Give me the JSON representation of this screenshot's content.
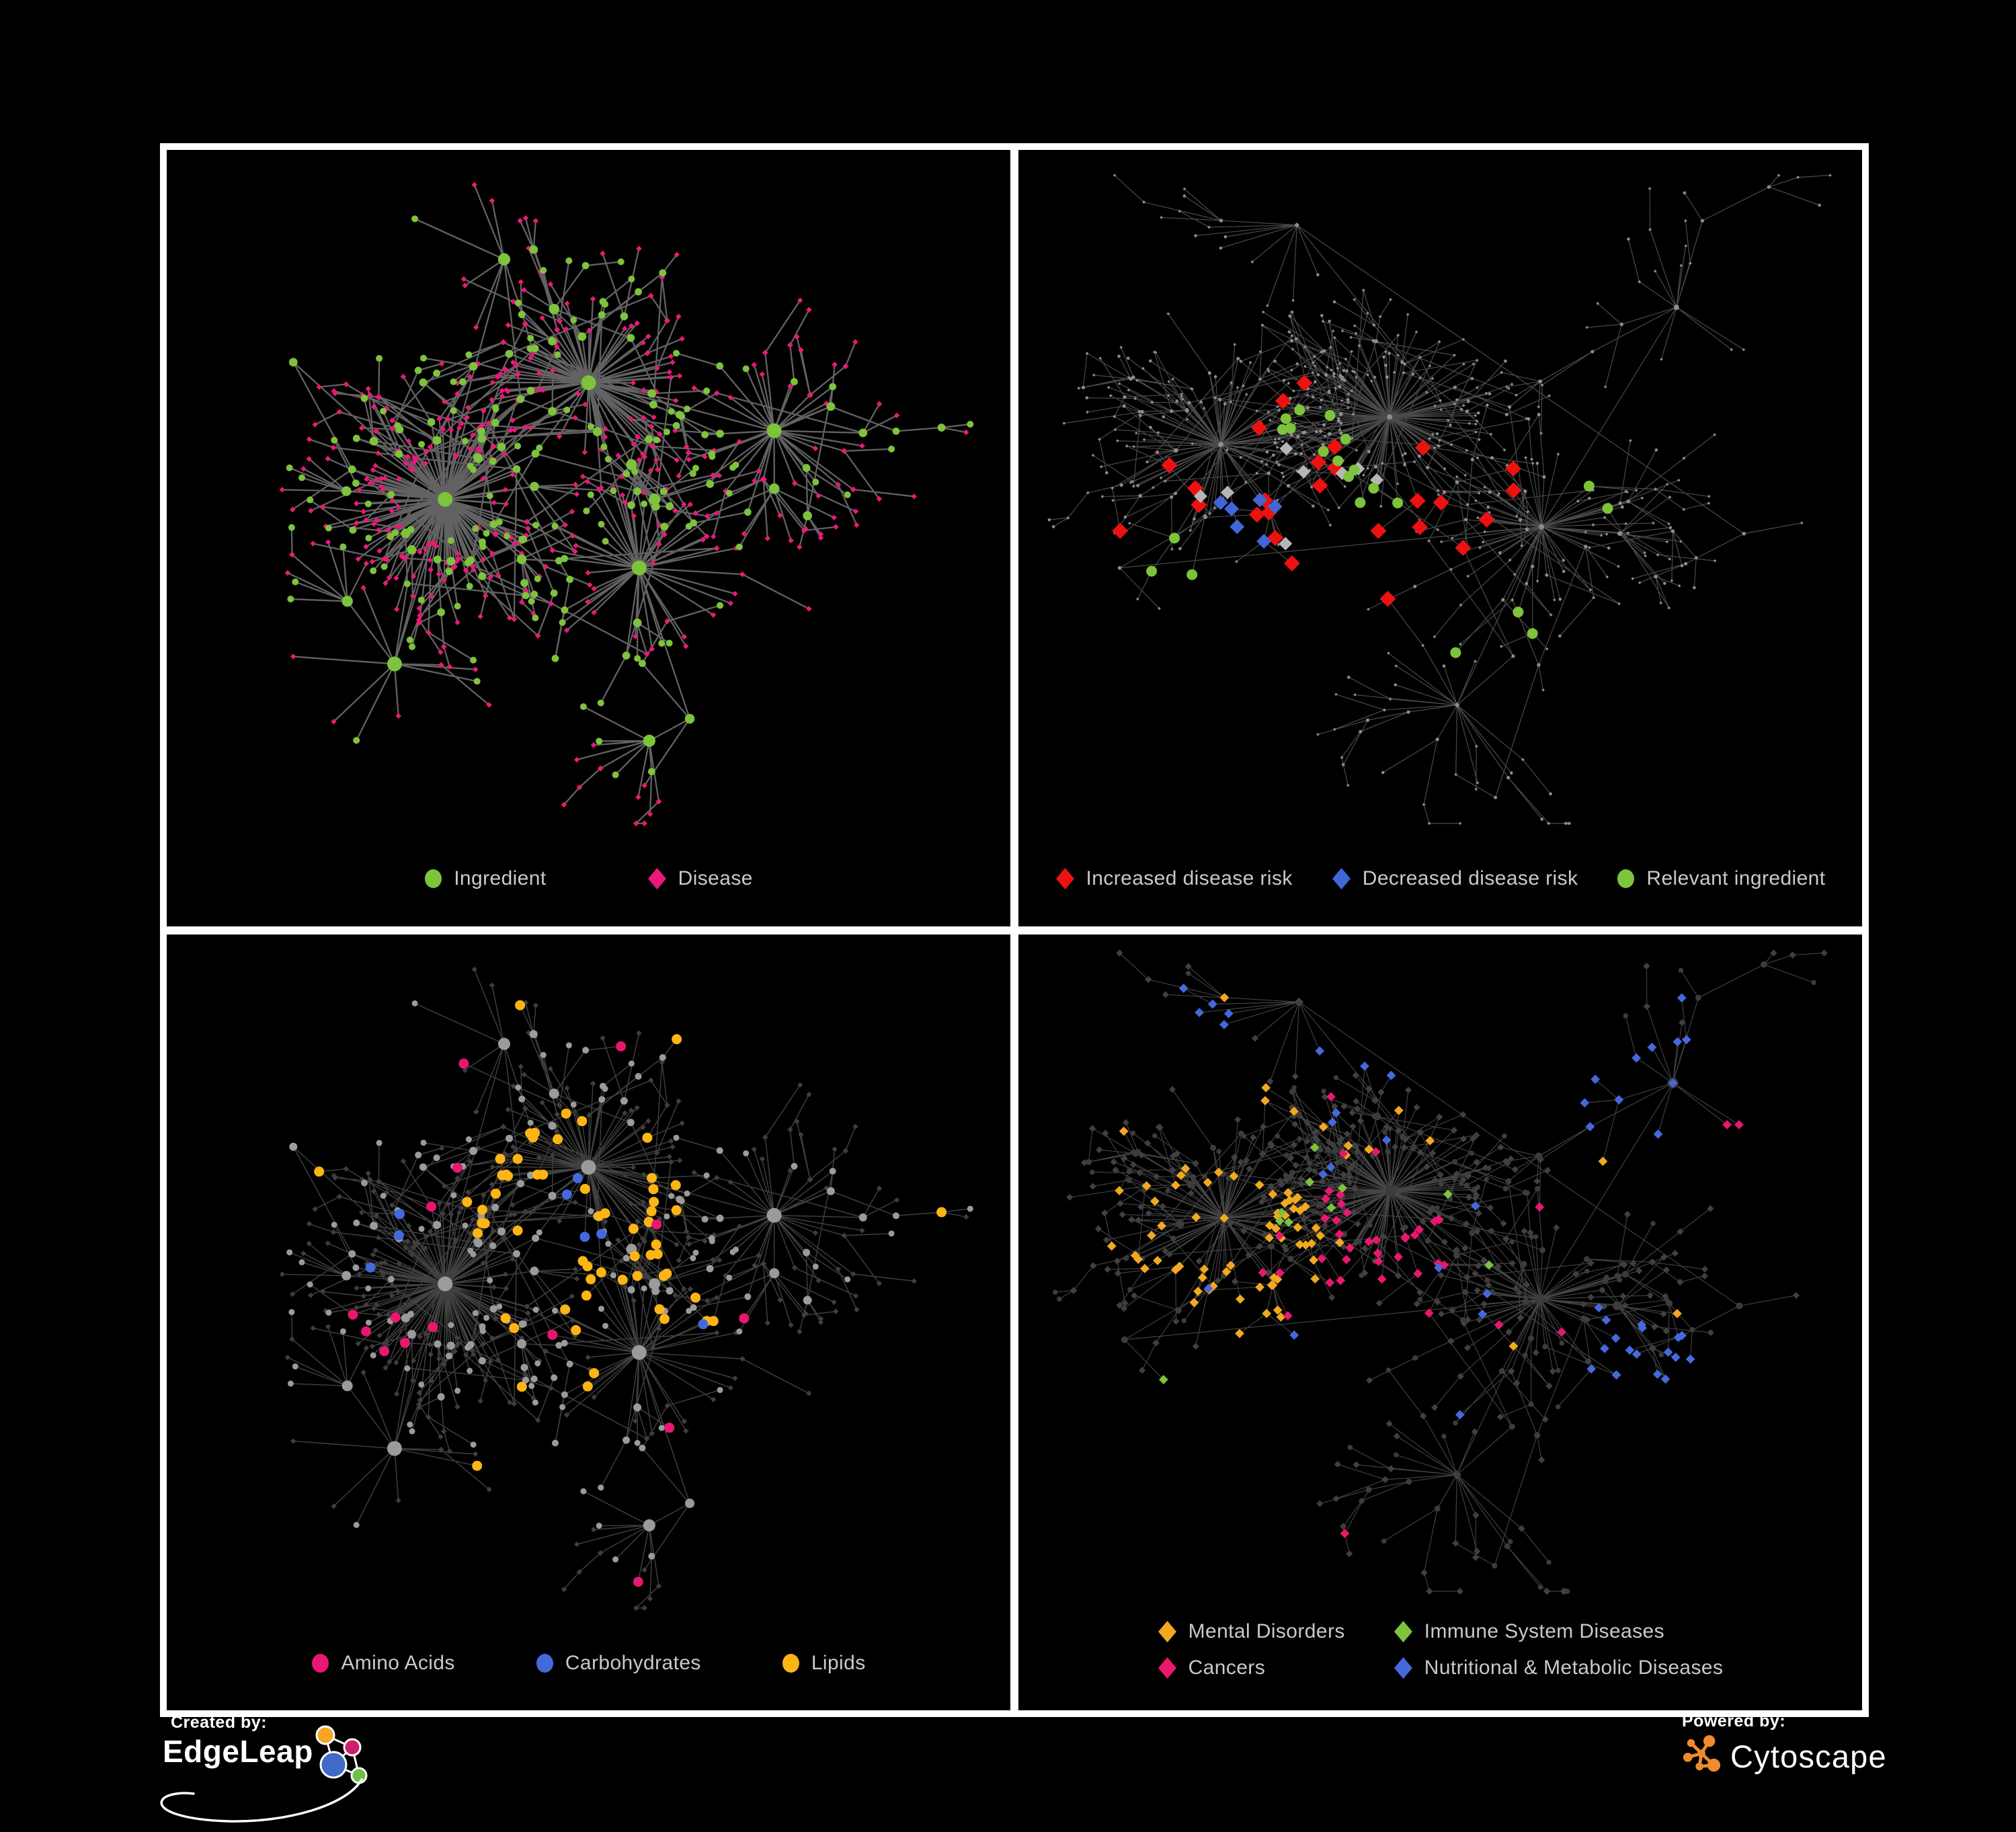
{
  "branding": {
    "created_by": "Created by:",
    "edgeleap": "EdgeLeap",
    "powered_by": "Powered by:",
    "cytoscape": "Cytoscape"
  },
  "colors": {
    "background": "#000000",
    "frame": "#ffffff",
    "legend_text": "#c9c9c9",
    "green_ingredient": "#7dc33c",
    "pink_disease": "#ec1879",
    "red_increased": "#ee1111",
    "blue_decreased": "#4166d8",
    "silver_neutral": "#b6b6b6",
    "amino_pink": "#e8176f",
    "carb_blue": "#4569dd",
    "lipid_yellow": "#fdb515",
    "mental_orange": "#f2a81f",
    "immune_green": "#7dc33c",
    "cytoscape_orange": "#ee8b2c"
  },
  "layouts": {
    "L1": {
      "seed": 21,
      "n": 630,
      "cross": 0.1,
      "clusters": [
        [
          0.33,
          0.5,
          3.5
        ],
        [
          0.5,
          0.33,
          2.2
        ],
        [
          0.56,
          0.6,
          1.6
        ],
        [
          0.27,
          0.74,
          1.2
        ],
        [
          0.72,
          0.4,
          1.0
        ],
        [
          0.4,
          0.15,
          0.8
        ],
        [
          0.62,
          0.82,
          0.8
        ],
        [
          0.15,
          0.3,
          0.7
        ]
      ]
    },
    "L2": {
      "seed": 77,
      "n": 650,
      "cross": 0.11,
      "clusters": [
        [
          0.44,
          0.38,
          3.2
        ],
        [
          0.24,
          0.42,
          1.8
        ],
        [
          0.62,
          0.54,
          1.6
        ],
        [
          0.78,
          0.22,
          1.0
        ],
        [
          0.33,
          0.1,
          0.9
        ],
        [
          0.52,
          0.8,
          0.9
        ],
        [
          0.86,
          0.55,
          0.8
        ],
        [
          0.12,
          0.6,
          0.6
        ]
      ]
    }
  },
  "panels": [
    {
      "id": "ingredient-disease",
      "legend": {
        "layout": "row-lg",
        "items": [
          {
            "label": "Ingredient",
            "shape": "circle",
            "color": "#7dc33c"
          },
          {
            "label": "Disease",
            "shape": "diamond",
            "color": "#ec1879"
          }
        ]
      },
      "network": {
        "layout": "L1",
        "hseed": 5,
        "edge": {
          "color": "#6f6f6f",
          "width": 2.3,
          "opacity": 0.88
        },
        "circle": {
          "color": "#7dc33c",
          "rmin": 4.5,
          "rmax": 11
        },
        "diamond": {
          "color": "#ec1879",
          "rmin": 4,
          "rmax": 7
        },
        "highlights": []
      }
    },
    {
      "id": "disease-risk",
      "legend": {
        "layout": "row-sm",
        "items": [
          {
            "label": "Increased disease risk",
            "shape": "diamond",
            "color": "#ee1111"
          },
          {
            "label": "Decreased disease risk",
            "shape": "diamond",
            "color": "#4166d8"
          },
          {
            "label": "Relevant ingredient",
            "shape": "circle",
            "color": "#7dc33c"
          }
        ]
      },
      "network": {
        "layout": "L2",
        "hseed": 11,
        "edge": {
          "color": "#6a6a6a",
          "width": 1.2,
          "opacity": 0.7
        },
        "circle": {
          "color": "#8d8d8d",
          "rmin": 2.2,
          "rmax": 4
        },
        "diamond": {
          "color": "#8d8d8d",
          "rmin": 2.2,
          "rmax": 4
        },
        "highlights": [
          {
            "shape": "diamond",
            "color": "#ee1111",
            "size": 12,
            "picks": [
              [
                0.42,
                0.55,
                0.14,
                16
              ],
              [
                0.25,
                0.45,
                0.08,
                5
              ],
              [
                0.14,
                0.56,
                0.04,
                1
              ],
              [
                0.62,
                0.44,
                0.06,
                2
              ],
              [
                0.78,
                0.8,
                0.08,
                3
              ],
              [
                0.31,
                0.35,
                0.05,
                2
              ]
            ]
          },
          {
            "shape": "diamond",
            "color": "#b6b6b6",
            "size": 10,
            "picks": [
              [
                0.33,
                0.58,
                0.18,
                7
              ],
              [
                0.21,
                0.47,
                0.04,
                1
              ]
            ]
          },
          {
            "shape": "diamond",
            "color": "#4166d8",
            "size": 11,
            "picks": [
              [
                0.26,
                0.55,
                0.07,
                6
              ],
              [
                0.88,
                0.38,
                0.04,
                2
              ]
            ]
          },
          {
            "shape": "circle",
            "color": "#7dc33c",
            "size": 8,
            "picks": [
              [
                0.33,
                0.52,
                0.16,
                12
              ],
              [
                0.55,
                0.7,
                0.06,
                3
              ],
              [
                0.12,
                0.63,
                0.06,
                1
              ],
              [
                0.29,
                0.37,
                0.06,
                3
              ],
              [
                0.66,
                0.52,
                0.05,
                2
              ]
            ]
          }
        ]
      }
    },
    {
      "id": "nutrient-classes",
      "legend": {
        "layout": "row-md",
        "items": [
          {
            "label": "Amino Acids",
            "shape": "circle",
            "color": "#e8176f"
          },
          {
            "label": "Carbohydrates",
            "shape": "circle",
            "color": "#4569dd"
          },
          {
            "label": "Lipids",
            "shape": "circle",
            "color": "#fdb515"
          }
        ]
      },
      "network": {
        "layout": "L1",
        "hseed": 23,
        "edge": {
          "color": "#9a9a9a",
          "width": 1.4,
          "opacity": 0.42
        },
        "circle": {
          "color": "#9b9b9b",
          "rmin": 4,
          "rmax": 11
        },
        "diamond": {
          "color": "#3e3e3e",
          "rmin": 4,
          "rmax": 6
        },
        "highlights": [
          {
            "shape": "circle",
            "color": "#fdb515",
            "size": 7.5,
            "picks": [
              [
                0.48,
                0.38,
                0.13,
                38
              ],
              [
                0.55,
                0.57,
                0.1,
                14
              ],
              [
                0.5,
                0.5,
                0.7,
                10
              ]
            ]
          },
          {
            "shape": "circle",
            "color": "#e8176f",
            "size": 7.5,
            "picks": [
              [
                0.5,
                0.5,
                0.75,
                15
              ]
            ]
          },
          {
            "shape": "circle",
            "color": "#4569dd",
            "size": 7.5,
            "picks": [
              [
                0.5,
                0.4,
                0.06,
                4
              ],
              [
                0.67,
                0.57,
                0.04,
                1
              ],
              [
                0.14,
                0.8,
                0.05,
                1
              ],
              [
                0.25,
                0.16,
                0.05,
                1
              ],
              [
                0.5,
                0.5,
                0.7,
                3
              ]
            ]
          }
        ]
      }
    },
    {
      "id": "disease-categories",
      "legend": {
        "layout": "grid2",
        "items": [
          {
            "label": "Mental Disorders",
            "shape": "diamond",
            "color": "#f2a81f"
          },
          {
            "label": "Immune System Diseases",
            "shape": "diamond",
            "color": "#7dc33c"
          },
          {
            "label": "Cancers",
            "shape": "diamond",
            "color": "#e8176f"
          },
          {
            "label": "Nutritional & Metabolic Diseases",
            "shape": "diamond",
            "color": "#4569dd"
          }
        ]
      },
      "network": {
        "layout": "L2",
        "hseed": 37,
        "edge": {
          "color": "#9a9a9a",
          "width": 1.1,
          "opacity": 0.45
        },
        "circle": {
          "color": "#3c3c3c",
          "rmin": 3.5,
          "rmax": 8
        },
        "diamond": {
          "color": "#404040",
          "rmin": 5,
          "rmax": 7
        },
        "highlights": [
          {
            "shape": "diamond",
            "color": "#f2a81f",
            "size": 7,
            "picks": [
              [
                0.23,
                0.47,
                0.13,
                62
              ],
              [
                0.42,
                0.12,
                0.2,
                8
              ],
              [
                0.55,
                0.12,
                0.1,
                3
              ],
              [
                0.5,
                0.5,
                0.7,
                8
              ]
            ]
          },
          {
            "shape": "diamond",
            "color": "#e8176f",
            "size": 7,
            "picks": [
              [
                0.4,
                0.49,
                0.12,
                34
              ],
              [
                0.87,
                0.26,
                0.06,
                7
              ],
              [
                0.5,
                0.5,
                0.7,
                7
              ]
            ]
          },
          {
            "shape": "diamond",
            "color": "#4569dd",
            "size": 7,
            "picks": [
              [
                0.73,
                0.64,
                0.08,
                16
              ],
              [
                0.78,
                0.27,
                0.12,
                18
              ],
              [
                0.3,
                0.62,
                0.07,
                8
              ],
              [
                0.46,
                0.1,
                0.12,
                7
              ],
              [
                0.23,
                0.12,
                0.07,
                5
              ],
              [
                0.5,
                0.5,
                0.7,
                14
              ]
            ]
          },
          {
            "shape": "diamond",
            "color": "#7dc33c",
            "size": 7,
            "picks": [
              [
                0.44,
                0.45,
                0.15,
                6
              ],
              [
                0.5,
                0.5,
                0.6,
                4
              ]
            ]
          }
        ]
      }
    }
  ]
}
